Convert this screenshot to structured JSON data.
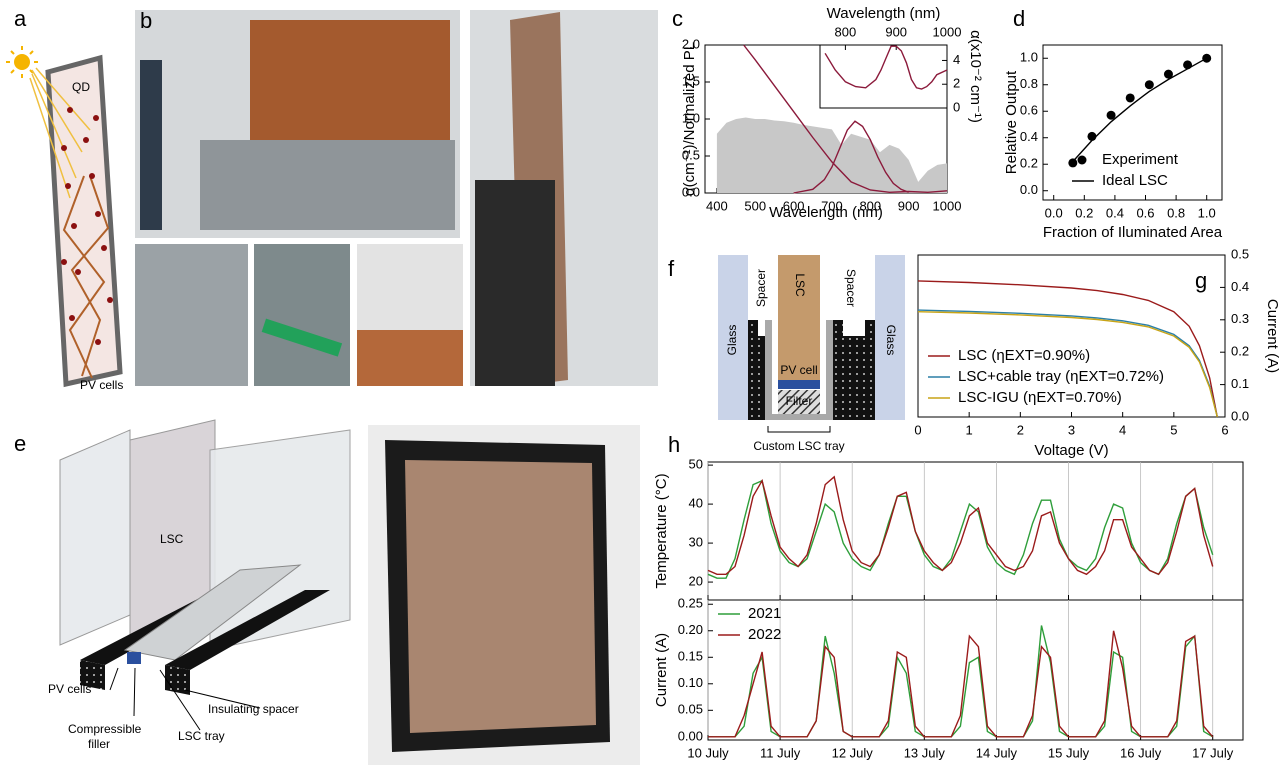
{
  "figure": {
    "panel_labels": [
      "a",
      "b",
      "c",
      "d",
      "e",
      "f",
      "g",
      "h"
    ],
    "panel_a": {
      "labels": [
        "QD",
        "PV cells"
      ]
    },
    "panel_e": {
      "labels": [
        "LSC",
        "PV cells",
        "Compressible",
        "filler",
        "LSC tray",
        "Insulating spacer"
      ]
    },
    "panel_f": {
      "labels": [
        "LSC",
        "Spacer",
        "Spacer",
        "Glass",
        "Glass",
        "PV cell",
        "Filter",
        "Custom LSC tray"
      ]
    }
  },
  "chart_data": [
    {
      "type": "line",
      "xlabel": "Wavelength (nm)",
      "ylabel": "α(cm⁻¹)/Normalized PL",
      "xlim": [
        369,
        1000
      ],
      "xticks": [
        400,
        500,
        600,
        700,
        800,
        900,
        1000
      ],
      "ylim": [
        0,
        2
      ],
      "yticks": [
        {
          "value": 0,
          "label": "0.0"
        },
        {
          "value": 0.5,
          "label": "0.5"
        },
        {
          "value": 1,
          "label": "1.0"
        },
        {
          "value": 1.5,
          "label": "1.5"
        },
        {
          "value": 2,
          "label": "2.0"
        }
      ],
      "series": [
        {
          "color": "#c8c8c8",
          "fill": true,
          "x": [
            400,
            425,
            450,
            475,
            500,
            525,
            550,
            575,
            600,
            625,
            650,
            675,
            700,
            725,
            750,
            775,
            800,
            825,
            850,
            875,
            900,
            925,
            950,
            975,
            1000
          ],
          "values": [
            0.8,
            0.95,
            1.0,
            1.02,
            1.0,
            1.0,
            0.98,
            0.97,
            0.95,
            0.92,
            0.9,
            0.88,
            0.86,
            0.65,
            0.8,
            0.76,
            0.72,
            0.55,
            0.65,
            0.6,
            0.45,
            0.15,
            0.3,
            0.38,
            0.4
          ]
        },
        {
          "color": "#8b1a3b",
          "x": [
            470,
            500,
            550,
            600,
            650,
            700,
            750,
            800,
            850,
            900,
            950,
            1000
          ],
          "values": [
            2.0,
            1.8,
            1.45,
            1.1,
            0.75,
            0.42,
            0.15,
            0.04,
            0.01,
            0.02,
            0.01,
            0.03
          ]
        },
        {
          "color": "#8b1a3b",
          "x": [
            600,
            650,
            680,
            700,
            720,
            740,
            760,
            780,
            800,
            820,
            840,
            860,
            880,
            900
          ],
          "values": [
            0,
            0.05,
            0.18,
            0.35,
            0.6,
            0.85,
            0.97,
            0.9,
            0.72,
            0.48,
            0.28,
            0.13,
            0.05,
            0.01
          ]
        }
      ],
      "inset": {
        "xlabel": "Wavelength (nm)",
        "ylabel": "α(x10⁻² cm⁻¹)",
        "xlim": [
          750,
          1000
        ],
        "xticks": [
          800,
          900,
          1000
        ],
        "ylim": [
          0,
          5.3
        ],
        "yticks": [
          0,
          2,
          4
        ],
        "series": [
          {
            "color": "#8b1a3b",
            "x": [
              760,
              780,
              800,
              820,
              840,
              860,
              870,
              880,
              890,
              900,
              910,
              920,
              930,
              940,
              950,
              960,
              970,
              980,
              1000
            ],
            "values": [
              4.6,
              3.2,
              2.2,
              1.8,
              1.7,
              2.4,
              3.2,
              4.2,
              5.2,
              5.2,
              4.8,
              3.8,
              2.4,
              1.7,
              1.6,
              1.8,
              2.2,
              2.8,
              3.2
            ]
          }
        ]
      }
    },
    {
      "type": "scatter",
      "xlabel": "Fraction of Iluminated Area",
      "ylabel": "Relative Output",
      "xlim": [
        -0.07,
        1.1
      ],
      "xticks": [
        {
          "value": 0,
          "label": "0.0"
        },
        {
          "value": 0.2,
          "label": "0.2"
        },
        {
          "value": 0.4,
          "label": "0.4"
        },
        {
          "value": 0.6,
          "label": "0.6"
        },
        {
          "value": 0.8,
          "label": "0.8"
        },
        {
          "value": 1,
          "label": "1.0"
        }
      ],
      "ylim": [
        -0.07,
        1.1
      ],
      "yticks": [
        {
          "value": 0,
          "label": "0.0"
        },
        {
          "value": 0.2,
          "label": "0.2"
        },
        {
          "value": 0.4,
          "label": "0.4"
        },
        {
          "value": 0.6,
          "label": "0.6"
        },
        {
          "value": 0.8,
          "label": "0.8"
        },
        {
          "value": 1,
          "label": "1.0"
        }
      ],
      "legend": "lower right",
      "series": [
        {
          "name": "Experiment",
          "color": "#000000",
          "x": [
            0.125,
            0.25,
            0.375,
            0.5,
            0.625,
            0.75,
            0.875,
            1.0
          ],
          "values": [
            0.21,
            0.41,
            0.57,
            0.7,
            0.8,
            0.88,
            0.95,
            1.0
          ]
        },
        {
          "name": "Ideal LSC",
          "color": "#000000",
          "line": true,
          "x": [
            0.125,
            0.25,
            0.375,
            0.5,
            0.625,
            0.75,
            0.875,
            1.0
          ],
          "values": [
            0.22,
            0.38,
            0.52,
            0.64,
            0.75,
            0.84,
            0.92,
            1.0
          ]
        }
      ]
    },
    {
      "type": "line",
      "xlabel": "Voltage (V)",
      "ylabel": "Current (A)",
      "y_axis": "right",
      "xlim": [
        0,
        6
      ],
      "xticks": [
        0,
        1,
        2,
        3,
        4,
        5,
        6
      ],
      "ylim": [
        0,
        0.5
      ],
      "yticks": [
        {
          "value": 0,
          "label": "0.0"
        },
        {
          "value": 0.1,
          "label": "0.1"
        },
        {
          "value": 0.2,
          "label": "0.2"
        },
        {
          "value": 0.3,
          "label": "0.3"
        },
        {
          "value": 0.4,
          "label": "0.4"
        },
        {
          "value": 0.5,
          "label": "0.5"
        }
      ],
      "legend": "lower left",
      "x": [
        0,
        1,
        2,
        3,
        3.5,
        4,
        4.5,
        5,
        5.3,
        5.5,
        5.7,
        5.85
      ],
      "series": [
        {
          "name": "LSC (ηEXT=0.90%)",
          "color": "#9b1b1b",
          "values": [
            0.42,
            0.415,
            0.408,
            0.398,
            0.39,
            0.378,
            0.36,
            0.325,
            0.28,
            0.22,
            0.12,
            0
          ]
        },
        {
          "name": "LSC+cable tray (ηEXT=0.72%)",
          "color": "#2b7fa6",
          "values": [
            0.33,
            0.326,
            0.32,
            0.312,
            0.306,
            0.297,
            0.283,
            0.255,
            0.22,
            0.175,
            0.095,
            0
          ]
        },
        {
          "name": "LSC-IGU (ηEXT=0.70%)",
          "color": "#c8a416",
          "values": [
            0.325,
            0.321,
            0.315,
            0.307,
            0.301,
            0.292,
            0.278,
            0.25,
            0.215,
            0.17,
            0.09,
            0
          ]
        }
      ]
    },
    {
      "type": "line",
      "grid": true,
      "x": [
        0,
        0.125,
        0.25,
        0.375,
        0.5,
        0.625,
        0.75,
        0.875,
        1,
        1.125,
        1.25,
        1.375,
        1.5,
        1.625,
        1.75,
        1.875,
        2,
        2.125,
        2.25,
        2.375,
        2.5,
        2.625,
        2.75,
        2.875,
        3,
        3.125,
        3.25,
        3.375,
        3.5,
        3.625,
        3.75,
        3.875,
        4,
        4.125,
        4.25,
        4.375,
        4.5,
        4.625,
        4.75,
        4.875,
        5,
        5.125,
        5.25,
        5.375,
        5.5,
        5.625,
        5.75,
        5.875,
        6,
        6.125,
        6.25,
        6.375,
        6.5,
        6.625,
        6.75,
        6.875,
        7
      ],
      "xlim": [
        0,
        7.42
      ],
      "xticks": [
        {
          "value": 0,
          "label": "10 July"
        },
        {
          "value": 1,
          "label": "11 July"
        },
        {
          "value": 2,
          "label": "12 July"
        },
        {
          "value": 3,
          "label": "13 July"
        },
        {
          "value": 4,
          "label": "14 July"
        },
        {
          "value": 5,
          "label": "15 July"
        },
        {
          "value": 6,
          "label": "16 July"
        },
        {
          "value": 7,
          "label": "17 July"
        }
      ],
      "subplots": [
        {
          "ylabel": "Temperature (°C)",
          "ylim": [
            15.4,
            50.8
          ],
          "yticks": [
            20,
            30,
            40,
            50
          ],
          "series": [
            {
              "color": "#2e9e3a",
              "values": [
                22,
                21,
                21,
                26,
                36,
                45,
                46,
                35,
                28,
                25,
                24,
                26,
                33,
                40,
                38,
                30,
                26,
                24,
                23,
                27,
                35,
                42,
                42,
                33,
                27,
                24,
                23,
                26,
                33,
                40,
                38,
                29,
                25,
                23,
                22,
                27,
                35,
                41,
                41,
                31,
                26,
                24,
                23,
                26,
                34,
                40,
                39,
                30,
                25,
                23,
                22,
                26,
                35,
                42,
                44,
                34,
                27
              ]
            },
            {
              "color": "#9b1b1b",
              "values": [
                23,
                22,
                22,
                24,
                32,
                42,
                46,
                37,
                29,
                26,
                24,
                27,
                35,
                45,
                47,
                36,
                28,
                25,
                24,
                27,
                34,
                42,
                43,
                33,
                28,
                25,
                23,
                25,
                30,
                37,
                39,
                30,
                27,
                24,
                23,
                24,
                28,
                37,
                38,
                30,
                26,
                23,
                22,
                24,
                28,
                36,
                36,
                29,
                26,
                23,
                22,
                25,
                33,
                42,
                44,
                32,
                24
              ]
            }
          ]
        },
        {
          "ylabel": "Current (A)",
          "ylim": [
            -0.006,
            0.258
          ],
          "legend": "upper left",
          "yticks": [
            {
              "value": 0,
              "label": "0.00"
            },
            {
              "value": 0.05,
              "label": "0.05"
            },
            {
              "value": 0.1,
              "label": "0.10"
            },
            {
              "value": 0.15,
              "label": "0.15"
            },
            {
              "value": 0.2,
              "label": "0.20"
            },
            {
              "value": 0.25,
              "label": "0.25"
            }
          ],
          "series": [
            {
              "name": "2021",
              "color": "#2e9e3a",
              "values": [
                0,
                0,
                0,
                0,
                0.02,
                0.12,
                0.15,
                0.01,
                0,
                0,
                0,
                0,
                0.03,
                0.19,
                0.12,
                0.01,
                0,
                0,
                0,
                0,
                0.02,
                0.15,
                0.12,
                0.01,
                0,
                0,
                0,
                0,
                0.02,
                0.14,
                0.15,
                0.01,
                0,
                0,
                0,
                0,
                0.03,
                0.21,
                0.14,
                0.01,
                0,
                0,
                0,
                0,
                0.02,
                0.16,
                0.15,
                0.01,
                0,
                0,
                0,
                0,
                0.02,
                0.17,
                0.19,
                0.01,
                0
              ]
            },
            {
              "name": "2022",
              "color": "#9b1b1b",
              "values": [
                0,
                0,
                0,
                0,
                0.04,
                0.1,
                0.16,
                0.02,
                0,
                0,
                0,
                0,
                0.03,
                0.17,
                0.15,
                0.01,
                0,
                0,
                0,
                0,
                0.03,
                0.16,
                0.15,
                0.02,
                0,
                0,
                0,
                0,
                0.04,
                0.19,
                0.17,
                0.02,
                0,
                0,
                0,
                0,
                0.04,
                0.17,
                0.15,
                0.02,
                0,
                0,
                0,
                0,
                0.03,
                0.2,
                0.13,
                0.02,
                0,
                0,
                0,
                0,
                0.03,
                0.18,
                0.19,
                0.02,
                0
              ]
            }
          ]
        }
      ]
    }
  ]
}
